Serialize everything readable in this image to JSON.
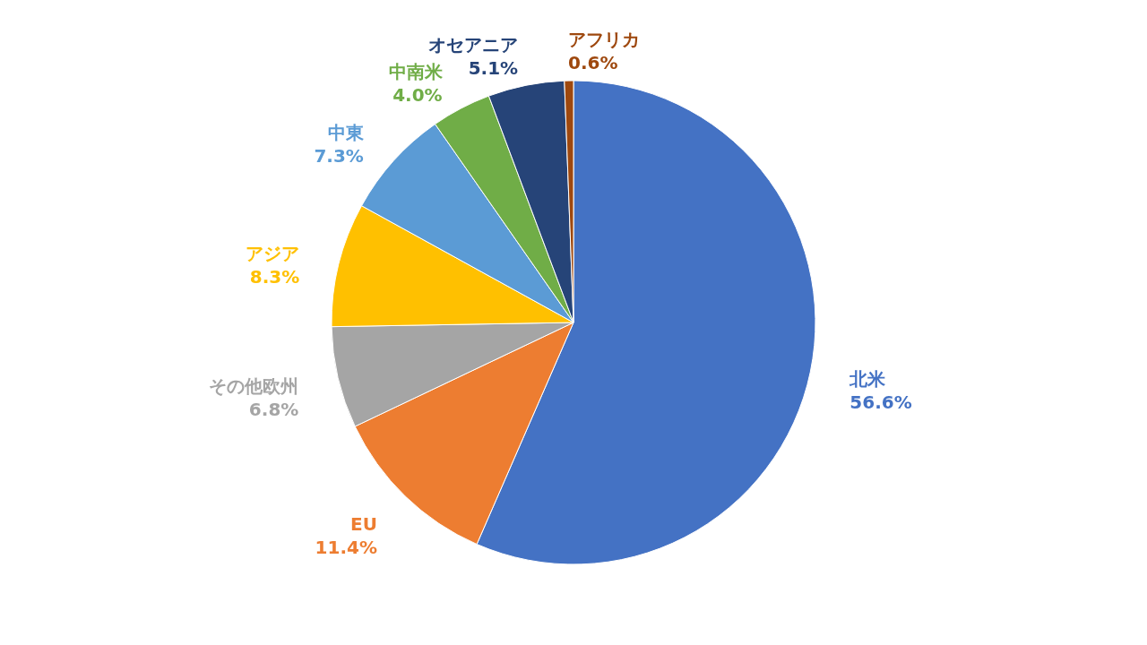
{
  "chart_data": {
    "type": "pie",
    "categories": [
      "北米",
      "EU",
      "その他欧州",
      "アジア",
      "中東",
      "中南米",
      "オセアニア",
      "アフリカ"
    ],
    "values": [
      56.6,
      11.4,
      6.8,
      8.3,
      7.3,
      4.0,
      5.1,
      0.6
    ],
    "value_labels": [
      "56.6%",
      "11.4%",
      "6.8%",
      "8.3%",
      "7.3%",
      "4.0%",
      "5.1%",
      "0.6%"
    ],
    "colors": [
      "#4472c4",
      "#ed7d31",
      "#a5a5a5",
      "#ffc000",
      "#5b9bd5",
      "#70ad47",
      "#264478",
      "#9e480e"
    ],
    "legend": false
  }
}
